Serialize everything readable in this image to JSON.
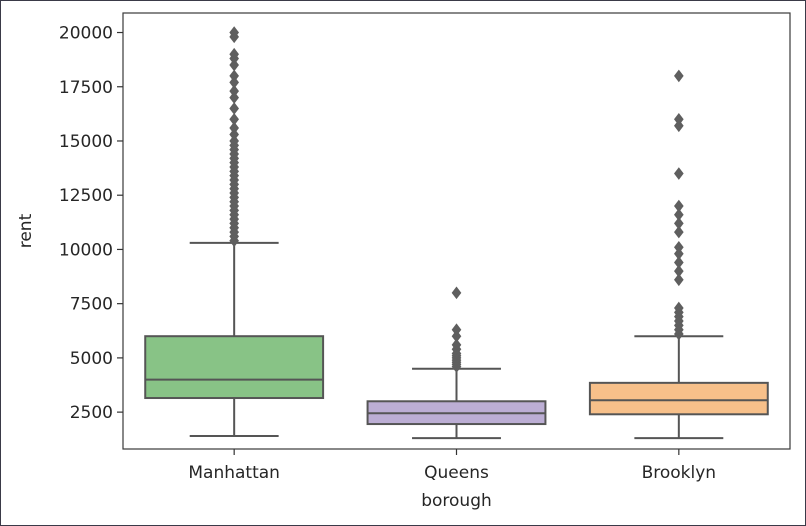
{
  "chart_data": {
    "type": "box",
    "title": "",
    "xlabel": "borough",
    "ylabel": "rent",
    "ylim": [
      800,
      20900
    ],
    "yticks": [
      2500,
      5000,
      7500,
      10000,
      12500,
      15000,
      17500,
      20000
    ],
    "ytick_labels": [
      "2500",
      "5000",
      "7500",
      "10000",
      "12500",
      "15000",
      "17500",
      "20000"
    ],
    "grid": false,
    "legend": "none",
    "categories": [
      "Manhattan",
      "Queens",
      "Brooklyn"
    ],
    "boxes": [
      {
        "category": "Manhattan",
        "color": "#88c386",
        "whisker_low": 1400,
        "q1": 3150,
        "median": 4000,
        "q3": 6000,
        "whisker_high": 10300,
        "outliers": [
          10400,
          10600,
          10800,
          11000,
          11200,
          11400,
          11600,
          11800,
          12000,
          12200,
          12400,
          12600,
          12800,
          13000,
          13200,
          13400,
          13600,
          13800,
          14000,
          14200,
          14400,
          14600,
          14800,
          15000,
          15300,
          15600,
          16000,
          16500,
          17000,
          17300,
          17700,
          18000,
          18500,
          18800,
          19000,
          19800,
          20000
        ]
      },
      {
        "category": "Queens",
        "color": "#bcaed4",
        "whisker_low": 1300,
        "q1": 1950,
        "median": 2450,
        "q3": 3000,
        "whisker_high": 4500,
        "outliers": [
          4600,
          4700,
          4800,
          4900,
          5000,
          5100,
          5200,
          5400,
          5600,
          6000,
          6300,
          8000
        ]
      },
      {
        "category": "Brooklyn",
        "color": "#f7c08a",
        "whisker_low": 1300,
        "q1": 2400,
        "median": 3050,
        "q3": 3850,
        "whisker_high": 6000,
        "outliers": [
          6100,
          6300,
          6500,
          6700,
          6900,
          7100,
          7300,
          8600,
          9000,
          9400,
          9800,
          10100,
          10800,
          11200,
          11600,
          12000,
          13500,
          15700,
          16000,
          18000
        ]
      }
    ]
  }
}
